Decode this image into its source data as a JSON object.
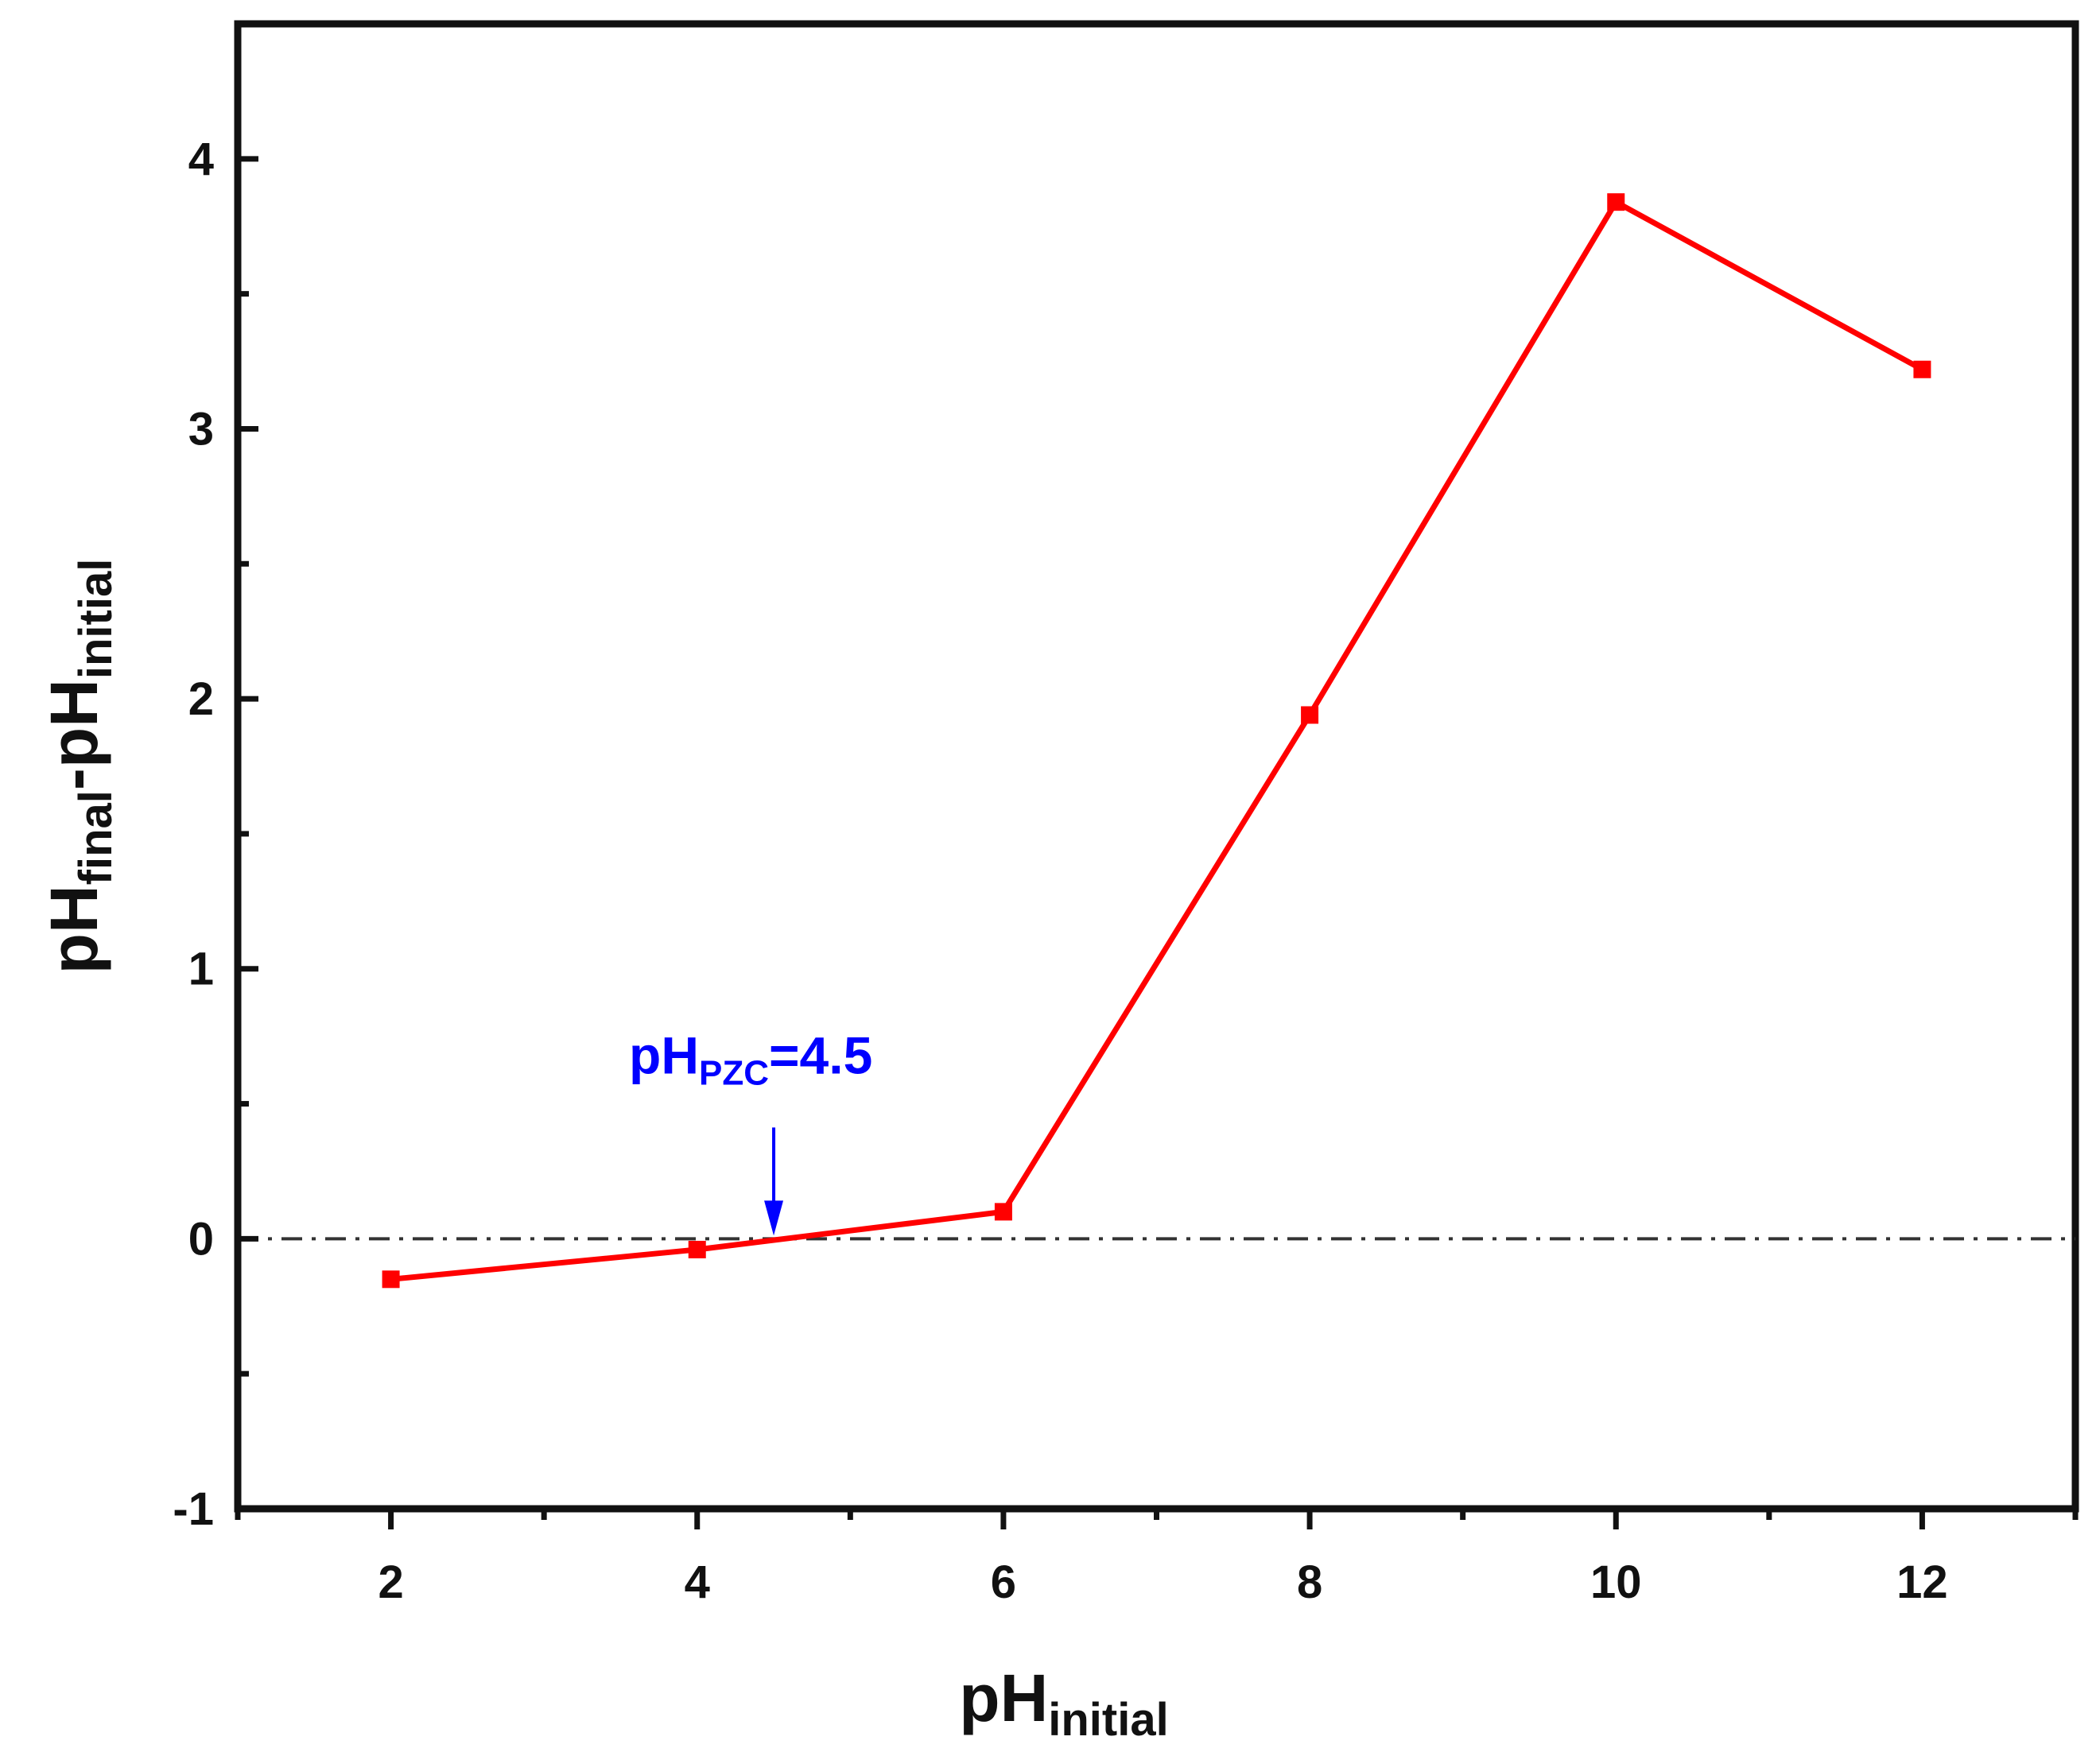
{
  "chart_data": {
    "type": "line",
    "xlabel": {
      "main": "pH",
      "sub": "initial"
    },
    "ylabel": {
      "main1": "pH",
      "sub1": "final",
      "dash": "-",
      "main2": "pH",
      "sub2": "initial"
    },
    "xlim": [
      1,
      13
    ],
    "ylim": [
      -1,
      4.5
    ],
    "xticks": [
      2,
      4,
      6,
      8,
      10,
      12
    ],
    "xtick_labels": [
      "2",
      "4",
      "6",
      "8",
      "10",
      "12"
    ],
    "yticks": [
      -1,
      0,
      1,
      2,
      3,
      4
    ],
    "ytick_labels": [
      "-1",
      "0",
      "1",
      "2",
      "3",
      "4"
    ],
    "grid": false,
    "series": [
      {
        "x": [
          2,
          4,
          6,
          8,
          10,
          12
        ],
        "y": [
          -0.15,
          -0.04,
          0.1,
          1.94,
          3.84,
          3.22
        ],
        "color": "#ff0000",
        "marker": "square"
      }
    ],
    "reference_line": {
      "y": 0,
      "style": "dash-dot",
      "color": "#333333"
    },
    "annotation": {
      "main": "pH",
      "sub": "PZC",
      "suffix": "=4.5",
      "x": 4.5,
      "y": 0,
      "color": "#0000ff"
    }
  }
}
